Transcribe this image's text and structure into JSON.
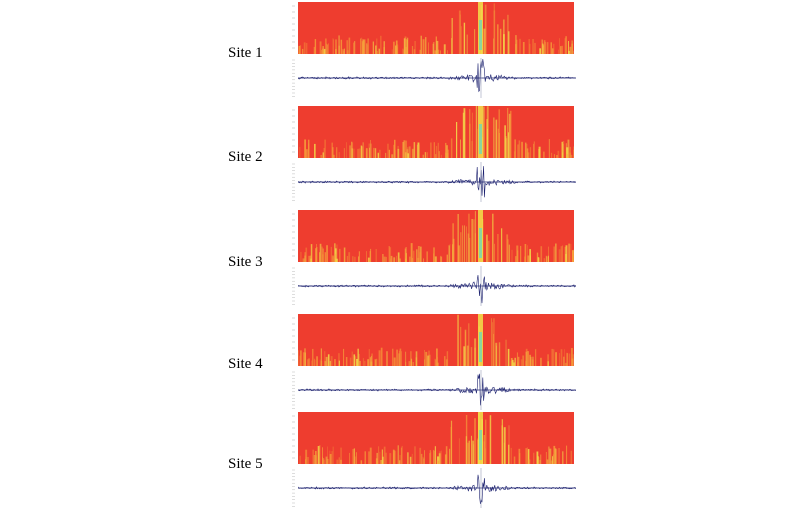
{
  "sites": [
    {
      "label": "Site 1"
    },
    {
      "label": "Site 2"
    },
    {
      "label": "Site 3"
    },
    {
      "label": "Site 4"
    },
    {
      "label": "Site 5"
    }
  ],
  "colors": {
    "spectrogram_base": "#ee3d2f",
    "spectrogram_mid": "#f6a23a",
    "spectrogram_high": "#f2e24a",
    "spectrogram_peak": "#7fd6a8",
    "waveform": "#1a1f6e",
    "axis": "#bbbbbb"
  }
}
